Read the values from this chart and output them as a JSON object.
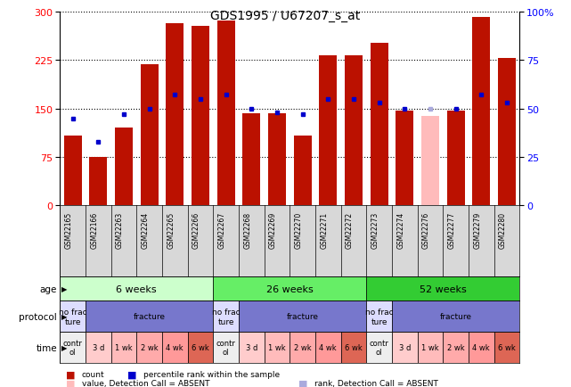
{
  "title": "GDS1995 / U67207_s_at",
  "samples": [
    "GSM22165",
    "GSM22166",
    "GSM22263",
    "GSM22264",
    "GSM22265",
    "GSM22266",
    "GSM22267",
    "GSM22268",
    "GSM22269",
    "GSM22270",
    "GSM22271",
    "GSM22272",
    "GSM22273",
    "GSM22274",
    "GSM22276",
    "GSM22277",
    "GSM22279",
    "GSM22280"
  ],
  "count_values": [
    108,
    75,
    120,
    218,
    282,
    278,
    286,
    142,
    143,
    108,
    232,
    232,
    252,
    147,
    138,
    147,
    291,
    228
  ],
  "rank_values": [
    45,
    33,
    47,
    50,
    57,
    55,
    57,
    50,
    48,
    47,
    55,
    55,
    53,
    50,
    50,
    50,
    57,
    53
  ],
  "absent_mask": [
    false,
    false,
    false,
    false,
    false,
    false,
    false,
    false,
    false,
    false,
    false,
    false,
    false,
    false,
    true,
    false,
    false,
    false
  ],
  "ylim_left": [
    0,
    300
  ],
  "ylim_right": [
    0,
    100
  ],
  "yticks_left": [
    0,
    75,
    150,
    225,
    300
  ],
  "yticks_right": [
    0,
    25,
    50,
    75,
    100
  ],
  "bar_color": "#bb1100",
  "bar_absent_color": "#ffbbbb",
  "rank_color": "#0000cc",
  "rank_absent_color": "#aaaadd",
  "age_groups": [
    {
      "label": "6 weeks",
      "start": 0,
      "end": 6,
      "color": "#ccffcc"
    },
    {
      "label": "26 weeks",
      "start": 6,
      "end": 12,
      "color": "#66ee66"
    },
    {
      "label": "52 weeks",
      "start": 12,
      "end": 18,
      "color": "#33cc33"
    }
  ],
  "protocol_groups": [
    {
      "label": "no frac\nture",
      "start": 0,
      "end": 1,
      "color": "#ddddff"
    },
    {
      "label": "fracture",
      "start": 1,
      "end": 6,
      "color": "#7777cc"
    },
    {
      "label": "no frac\nture",
      "start": 6,
      "end": 7,
      "color": "#ddddff"
    },
    {
      "label": "fracture",
      "start": 7,
      "end": 12,
      "color": "#7777cc"
    },
    {
      "label": "no frac\nture",
      "start": 12,
      "end": 13,
      "color": "#ddddff"
    },
    {
      "label": "fracture",
      "start": 13,
      "end": 18,
      "color": "#7777cc"
    }
  ],
  "time_groups": [
    {
      "label": "contr\nol",
      "start": 0,
      "end": 1,
      "color": "#eeeeee"
    },
    {
      "label": "3 d",
      "start": 1,
      "end": 2,
      "color": "#ffcccc"
    },
    {
      "label": "1 wk",
      "start": 2,
      "end": 3,
      "color": "#ffbbbb"
    },
    {
      "label": "2 wk",
      "start": 3,
      "end": 4,
      "color": "#ffaaaa"
    },
    {
      "label": "4 wk",
      "start": 4,
      "end": 5,
      "color": "#ff9999"
    },
    {
      "label": "6 wk",
      "start": 5,
      "end": 6,
      "color": "#dd6655"
    },
    {
      "label": "contr\nol",
      "start": 6,
      "end": 7,
      "color": "#eeeeee"
    },
    {
      "label": "3 d",
      "start": 7,
      "end": 8,
      "color": "#ffcccc"
    },
    {
      "label": "1 wk",
      "start": 8,
      "end": 9,
      "color": "#ffbbbb"
    },
    {
      "label": "2 wk",
      "start": 9,
      "end": 10,
      "color": "#ffaaaa"
    },
    {
      "label": "4 wk",
      "start": 10,
      "end": 11,
      "color": "#ff9999"
    },
    {
      "label": "6 wk",
      "start": 11,
      "end": 12,
      "color": "#dd6655"
    },
    {
      "label": "contr\nol",
      "start": 12,
      "end": 13,
      "color": "#eeeeee"
    },
    {
      "label": "3 d",
      "start": 13,
      "end": 14,
      "color": "#ffcccc"
    },
    {
      "label": "1 wk",
      "start": 14,
      "end": 15,
      "color": "#ffbbbb"
    },
    {
      "label": "2 wk",
      "start": 15,
      "end": 16,
      "color": "#ffaaaa"
    },
    {
      "label": "4 wk",
      "start": 16,
      "end": 17,
      "color": "#ff9999"
    },
    {
      "label": "6 wk",
      "start": 17,
      "end": 18,
      "color": "#dd6655"
    }
  ],
  "legend_items": [
    {
      "label": "count",
      "color": "#bb1100"
    },
    {
      "label": "percentile rank within the sample",
      "color": "#0000cc"
    },
    {
      "label": "value, Detection Call = ABSENT",
      "color": "#ffbbbb"
    },
    {
      "label": "rank, Detection Call = ABSENT",
      "color": "#aaaadd"
    }
  ],
  "bg_color": "#ffffff"
}
